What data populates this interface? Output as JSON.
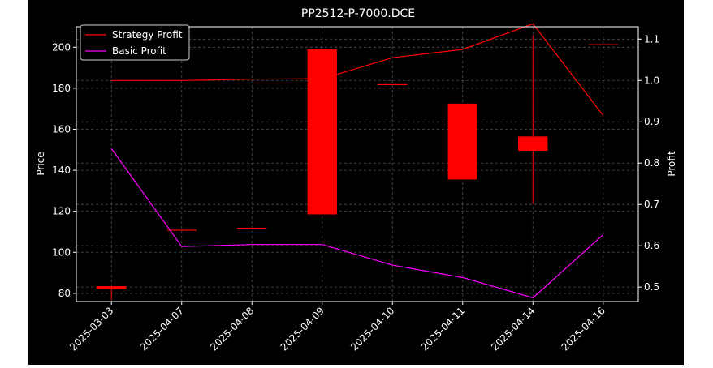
{
  "chart_data": {
    "type": "candlestick+line",
    "title": "PP2512-P-7000.DCE",
    "ylabel_left": "Price",
    "ylabel_right": "Profit",
    "xlabel": "",
    "categories": [
      "2025-03-03",
      "2025-04-07",
      "2025-04-08",
      "2025-04-09",
      "2025-04-10",
      "2025-04-11",
      "2025-04-14",
      "2025-04-16"
    ],
    "ylim_left": [
      76,
      210
    ],
    "ylim_right": [
      0.465,
      1.13
    ],
    "yticks_left": [
      80,
      100,
      120,
      140,
      160,
      180,
      200
    ],
    "yticks_right": [
      0.5,
      0.6,
      0.7,
      0.8,
      0.9,
      1.0,
      1.1
    ],
    "grid": true,
    "legend_position": "top-left",
    "candles": [
      {
        "open": 82.0,
        "close": 83.5,
        "high": 83.5,
        "low": 77.0
      },
      {
        "open": 111.0,
        "close": 111.0,
        "high": 111.0,
        "low": 111.0
      },
      {
        "open": 112.0,
        "close": 112.0,
        "high": 112.0,
        "low": 112.0
      },
      {
        "open": 118.5,
        "close": 199.0,
        "high": 199.0,
        "low": 118.5
      },
      {
        "open": 182.0,
        "close": 182.0,
        "high": 182.0,
        "low": 182.0
      },
      {
        "open": 172.5,
        "close": 135.5,
        "high": 172.5,
        "low": 135.5
      },
      {
        "open": 149.5,
        "close": 156.5,
        "high": 206.0,
        "low": 123.5
      },
      {
        "open": 201.5,
        "close": 201.5,
        "high": 201.5,
        "low": 201.5
      }
    ],
    "series": [
      {
        "name": "Strategy Profit",
        "color": "#ff0000",
        "values": [
          1.0,
          1.0,
          1.003,
          1.004,
          1.055,
          1.075,
          1.137,
          0.915
        ]
      },
      {
        "name": "Basic Profit",
        "color": "#ff00ff",
        "values": [
          0.835,
          0.598,
          0.603,
          0.603,
          0.553,
          0.523,
          0.474,
          0.627
        ]
      }
    ],
    "candle_color": "#ff0000"
  }
}
